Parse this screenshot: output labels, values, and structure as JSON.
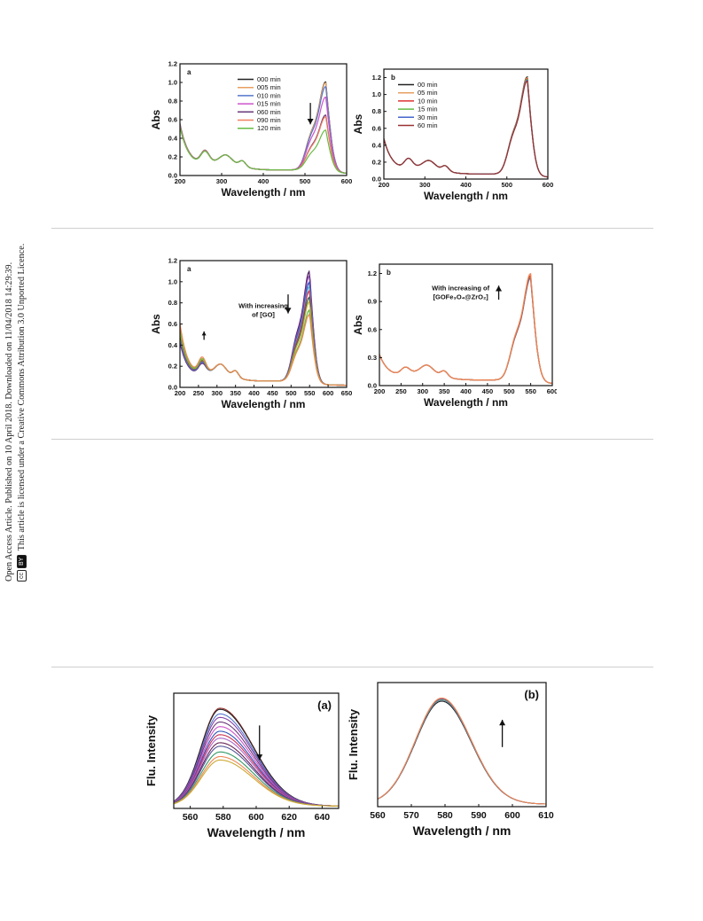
{
  "sidebar": {
    "line1": "Open Access Article. Published on 10 April 2018. Downloaded on 11/04/2018 14:29:39.",
    "line2": "This article is licensed under a Creative Commons Attribution 3.0 Unported Licence.",
    "cc_label": "cc",
    "by_label": "BY"
  },
  "chart_data": [
    {
      "type": "line",
      "panel_label": "a",
      "xlabel": "Wavelength / nm",
      "ylabel": "Abs",
      "xlim": [
        200,
        600
      ],
      "ylim": [
        0,
        1.2
      ],
      "xticks": [
        200,
        300,
        400,
        500,
        600
      ],
      "yticks": [
        0.0,
        0.2,
        0.4,
        0.6,
        0.8,
        1.0,
        1.2
      ],
      "ytick_decimals": 1,
      "legend": "top-center",
      "arrow": {
        "x": 513,
        "y_from": 0.78,
        "y_to": 0.55,
        "direction": "down"
      },
      "peak": 550,
      "series": [
        {
          "name": "000 min",
          "color": "#222222",
          "peak_value": 0.93,
          "base": 0.55
        },
        {
          "name": "005 min",
          "color": "#e8a060",
          "peak_value": 0.92,
          "base": 0.55
        },
        {
          "name": "010 min",
          "color": "#5577cc",
          "peak_value": 0.88,
          "base": 0.54
        },
        {
          "name": "015 min",
          "color": "#cc55cc",
          "peak_value": 0.77,
          "base": 0.53
        },
        {
          "name": "060 min",
          "color": "#6a3a7a",
          "peak_value": 0.58,
          "base": 0.52
        },
        {
          "name": "090 min",
          "color": "#f08060",
          "peak_value": 0.56,
          "base": 0.52
        },
        {
          "name": "120 min",
          "color": "#66bb44",
          "peak_value": 0.42,
          "base": 0.51
        }
      ]
    },
    {
      "type": "line",
      "panel_label": "b",
      "xlabel": "Wavelength / nm",
      "ylabel": "Abs",
      "xlim": [
        200,
        600
      ],
      "ylim": [
        0,
        1.3
      ],
      "xticks": [
        200,
        300,
        400,
        500,
        600
      ],
      "yticks": [
        0.0,
        0.2,
        0.4,
        0.6,
        0.8,
        1.0,
        1.2
      ],
      "ytick_decimals": 1,
      "legend": "top-left",
      "peak": 550,
      "series": [
        {
          "name": "00 min",
          "color": "#222222",
          "peak_value": 1.13,
          "base": 0.46
        },
        {
          "name": "05 min",
          "color": "#e8a060",
          "peak_value": 1.12,
          "base": 0.46
        },
        {
          "name": "10 min",
          "color": "#dd3333",
          "peak_value": 1.11,
          "base": 0.46
        },
        {
          "name": "15 min",
          "color": "#66bb44",
          "peak_value": 1.1,
          "base": 0.46
        },
        {
          "name": "30 min",
          "color": "#4466cc",
          "peak_value": 1.09,
          "base": 0.46
        },
        {
          "name": "60 min",
          "color": "#993333",
          "peak_value": 1.08,
          "base": 0.46
        }
      ]
    },
    {
      "type": "line",
      "panel_label": "a",
      "xlabel": "Wavelength / nm",
      "ylabel": "Abs",
      "xlim": [
        200,
        650
      ],
      "ylim": [
        0,
        1.2
      ],
      "xticks": [
        200,
        250,
        300,
        350,
        400,
        450,
        500,
        550,
        600,
        650
      ],
      "yticks": [
        0.0,
        0.2,
        0.4,
        0.6,
        0.8,
        1.0,
        1.2
      ],
      "ytick_decimals": 1,
      "annotation": {
        "text_lines": [
          "With increasing",
          "of [GO]"
        ],
        "x": 425,
        "y": 0.75
      },
      "arrow": {
        "x": 492,
        "y_from": 0.88,
        "y_to": 0.7,
        "direction": "down"
      },
      "arrow2": {
        "x": 265,
        "y_from": 0.45,
        "y_to": 0.53,
        "direction": "up"
      },
      "peak": 550,
      "series": [
        {
          "name": "",
          "color": "#4a1a5a",
          "peak_value": 1.02,
          "base": 0.4
        },
        {
          "name": "",
          "color": "#8844aa",
          "peak_value": 0.98,
          "base": 0.42
        },
        {
          "name": "",
          "color": "#3355bb",
          "peak_value": 0.92,
          "base": 0.44
        },
        {
          "name": "",
          "color": "#55aacc",
          "peak_value": 0.88,
          "base": 0.46
        },
        {
          "name": "",
          "color": "#cc3355",
          "peak_value": 0.84,
          "base": 0.48
        },
        {
          "name": "",
          "color": "#226655",
          "peak_value": 0.78,
          "base": 0.5
        },
        {
          "name": "",
          "color": "#ccaa33",
          "peak_value": 0.74,
          "base": 0.52
        },
        {
          "name": "",
          "color": "#66bb44",
          "peak_value": 0.66,
          "base": 0.55
        },
        {
          "name": "",
          "color": "#ee8855",
          "peak_value": 0.62,
          "base": 0.6
        }
      ]
    },
    {
      "type": "line",
      "panel_label": "b",
      "xlabel": "Wavelength / nm",
      "ylabel": "Abs",
      "xlim": [
        200,
        600
      ],
      "ylim": [
        0,
        1.3
      ],
      "xticks": [
        200,
        250,
        300,
        350,
        400,
        450,
        500,
        550,
        600
      ],
      "yticks": [
        0.0,
        0.3,
        0.6,
        0.9,
        1.2
      ],
      "ytick_decimals": 1,
      "annotation": {
        "text_lines": [
          "With increasing of",
          "[GOFe₃O₄@ZrO₂]"
        ],
        "x": 388,
        "y": 1.02
      },
      "arrow": {
        "x": 476,
        "y_from": 0.92,
        "y_to": 1.07,
        "direction": "up"
      },
      "peak": 550,
      "series": [
        {
          "name": "",
          "color": "#4466aa",
          "peak_value": 1.07,
          "base": 0.3
        },
        {
          "name": "",
          "color": "#8844aa",
          "peak_value": 1.08,
          "base": 0.3
        },
        {
          "name": "",
          "color": "#66bb44",
          "peak_value": 1.09,
          "base": 0.3
        },
        {
          "name": "",
          "color": "#dd3333",
          "peak_value": 1.1,
          "base": 0.3
        },
        {
          "name": "",
          "color": "#ee8855",
          "peak_value": 1.12,
          "base": 0.3
        }
      ]
    },
    {
      "type": "line",
      "panel_label": "(a)",
      "xlabel": "Wavelength / nm",
      "ylabel": "Flu. Intensity",
      "xlim": [
        550,
        650
      ],
      "ylim": [
        0,
        1.0
      ],
      "xticks": [
        560,
        580,
        600,
        620,
        640
      ],
      "yticks": [],
      "arrow": {
        "x": 602,
        "y_from": 0.72,
        "y_to": 0.42,
        "direction": "down"
      },
      "peak": 578,
      "series": [
        {
          "name": "",
          "color": "#993333",
          "peak_value": 0.87
        },
        {
          "name": "",
          "color": "#222222",
          "peak_value": 0.86
        },
        {
          "name": "",
          "color": "#5577cc",
          "peak_value": 0.82
        },
        {
          "name": "",
          "color": "#8844aa",
          "peak_value": 0.79
        },
        {
          "name": "",
          "color": "#6a3a7a",
          "peak_value": 0.75
        },
        {
          "name": "",
          "color": "#cc55cc",
          "peak_value": 0.71
        },
        {
          "name": "",
          "color": "#3355bb",
          "peak_value": 0.67
        },
        {
          "name": "",
          "color": "#cc3355",
          "peak_value": 0.64
        },
        {
          "name": "",
          "color": "#aa66cc",
          "peak_value": 0.61
        },
        {
          "name": "",
          "color": "#662255",
          "peak_value": 0.57
        },
        {
          "name": "",
          "color": "#555599",
          "peak_value": 0.54
        },
        {
          "name": "",
          "color": "#339966",
          "peak_value": 0.49
        },
        {
          "name": "",
          "color": "#ee8855",
          "peak_value": 0.45
        },
        {
          "name": "",
          "color": "#ccaa33",
          "peak_value": 0.42
        }
      ]
    },
    {
      "type": "line",
      "panel_label": "(b)",
      "xlabel": "Wavelength / nm",
      "ylabel": "Flu. Intensity",
      "xlim": [
        560,
        610
      ],
      "ylim": [
        0,
        1.0
      ],
      "xticks": [
        560,
        570,
        580,
        590,
        600,
        610
      ],
      "yticks": [],
      "arrow": {
        "x": 597,
        "y_from": 0.48,
        "y_to": 0.7,
        "direction": "up"
      },
      "peak": 579,
      "series": [
        {
          "name": "",
          "color": "#222222",
          "peak_value": 0.85
        },
        {
          "name": "",
          "color": "#5577cc",
          "peak_value": 0.86
        },
        {
          "name": "",
          "color": "#66bb44",
          "peak_value": 0.865
        },
        {
          "name": "",
          "color": "#8844aa",
          "peak_value": 0.87
        },
        {
          "name": "",
          "color": "#ee8855",
          "peak_value": 0.875
        }
      ]
    }
  ]
}
